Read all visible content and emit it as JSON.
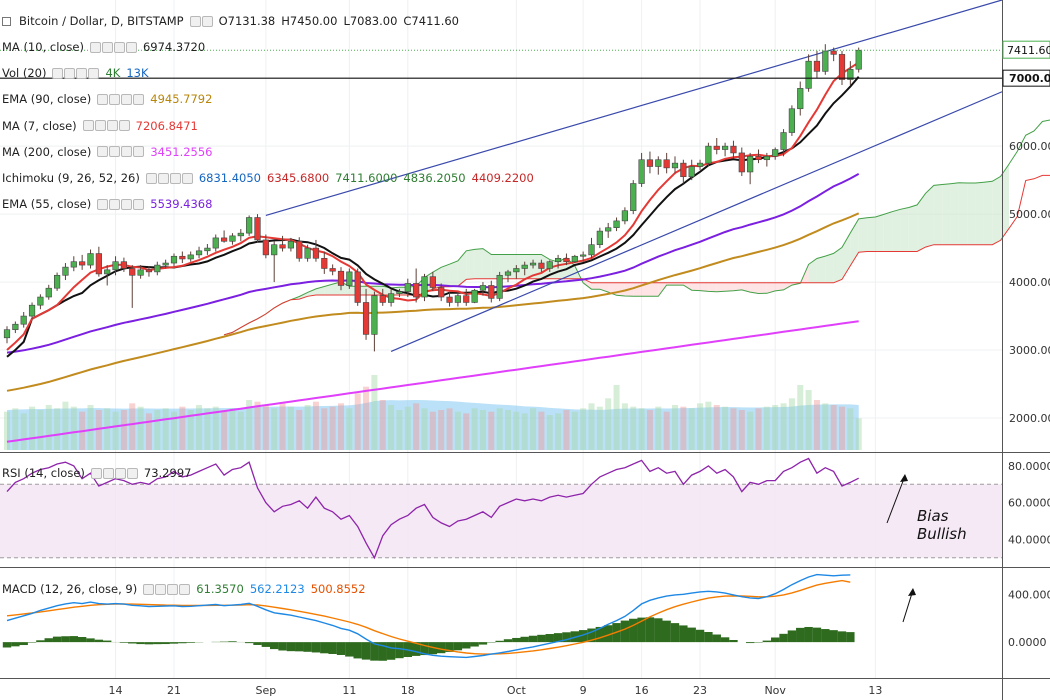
{
  "chart_data": {
    "type": "candlestick",
    "symbol": {
      "name": "Bitcoin / Dollar, D, BITSTAMP",
      "open": "O7131.38",
      "high": "H7450.00",
      "low": "L7083.00",
      "close": "C7411.60"
    },
    "x_tick_labels": [
      {
        "label": "14",
        "day": 13
      },
      {
        "label": "21",
        "day": 20
      },
      {
        "label": "Sep",
        "day": 31
      },
      {
        "label": "11",
        "day": 41
      },
      {
        "label": "18",
        "day": 48
      },
      {
        "label": "Oct",
        "day": 61
      },
      {
        "label": "9",
        "day": 69
      },
      {
        "label": "16",
        "day": 76
      },
      {
        "label": "23",
        "day": 83
      },
      {
        "label": "Nov",
        "day": 92
      },
      {
        "label": "13",
        "day": 104
      }
    ],
    "price_axis": {
      "ticks": [
        "7000.00",
        "6000.00",
        "5000.00",
        "4000.00",
        "3000.00",
        "2000.00"
      ],
      "tick_values": [
        7000,
        6000,
        5000,
        4000,
        3000,
        2000
      ],
      "last_price_label": "7411.60",
      "last_price": 7411.6,
      "ylim": [
        1500,
        8150
      ]
    },
    "rsi_axis": {
      "ticks": [
        "80.0000",
        "60.0000",
        "40.0000"
      ],
      "tick_values": [
        80,
        60,
        40
      ],
      "ylim": [
        25,
        87
      ],
      "bands": [
        70,
        30
      ]
    },
    "macd_axis": {
      "ticks": [
        "400.0000",
        "0.0000"
      ],
      "tick_values": [
        400,
        0
      ],
      "ylim": [
        -300,
        620
      ]
    },
    "indicators": [
      {
        "name": "MA (10, close)",
        "values": [
          {
            "text": "6974.3720",
            "color": "#222222"
          }
        ]
      },
      {
        "name": "Vol (20)",
        "values": [
          {
            "text": "4K",
            "color": "#2e7d32"
          },
          {
            "text": "13K",
            "color": "#1565c0"
          }
        ]
      },
      {
        "name": "EMA (90, close)",
        "values": [
          {
            "text": "4945.7792",
            "color": "#b8860b"
          }
        ]
      },
      {
        "name": "MA (7, close)",
        "values": [
          {
            "text": "7206.8471",
            "color": "#e53935"
          }
        ]
      },
      {
        "name": "MA (200, close)",
        "values": [
          {
            "text": "3451.2556",
            "color": "#e040fb"
          }
        ]
      },
      {
        "name": "Ichimoku (9, 26, 52, 26)",
        "values": [
          {
            "text": "6831.4050",
            "color": "#1565c0"
          },
          {
            "text": "6345.6800",
            "color": "#c62828"
          },
          {
            "text": "7411.6000",
            "color": "#2e7d32"
          },
          {
            "text": "4836.2050",
            "color": "#2e7d32"
          },
          {
            "text": "4409.2200",
            "color": "#c62828"
          }
        ]
      },
      {
        "name": "EMA (55, close)",
        "values": [
          {
            "text": "5539.4368",
            "color": "#7b1fe0"
          }
        ]
      }
    ],
    "rsi_label": {
      "name": "RSI (14, close)",
      "value": "73.2997",
      "color": "#222222"
    },
    "macd_label": {
      "name": "MACD (12, 26, close, 9)",
      "values": [
        {
          "text": "61.3570",
          "color": "#2e7d32"
        },
        {
          "text": "562.2123",
          "color": "#1e88e5"
        },
        {
          "text": "500.8552",
          "color": "#e65100"
        }
      ]
    },
    "annotation": {
      "line1": "Bias",
      "line2": "Bullish"
    },
    "candles_start_day": 0,
    "ohlc": [
      [
        3180,
        3350,
        3100,
        3300
      ],
      [
        3300,
        3420,
        3250,
        3380
      ],
      [
        3380,
        3560,
        3330,
        3500
      ],
      [
        3500,
        3700,
        3460,
        3660
      ],
      [
        3660,
        3820,
        3600,
        3780
      ],
      [
        3780,
        3960,
        3740,
        3910
      ],
      [
        3910,
        4140,
        3870,
        4100
      ],
      [
        4100,
        4280,
        4030,
        4220
      ],
      [
        4220,
        4380,
        4160,
        4300
      ],
      [
        4300,
        4400,
        4180,
        4250
      ],
      [
        4250,
        4480,
        4200,
        4420
      ],
      [
        4420,
        4520,
        4080,
        4120
      ],
      [
        4120,
        4250,
        3950,
        4180
      ],
      [
        4180,
        4380,
        4100,
        4300
      ],
      [
        4300,
        4360,
        4150,
        4200
      ],
      [
        4200,
        4250,
        3620,
        4100
      ],
      [
        4100,
        4250,
        4050,
        4180
      ],
      [
        4180,
        4230,
        4080,
        4150
      ],
      [
        4150,
        4300,
        4100,
        4250
      ],
      [
        4250,
        4330,
        4200,
        4280
      ],
      [
        4280,
        4420,
        4230,
        4380
      ],
      [
        4380,
        4450,
        4280,
        4340
      ],
      [
        4340,
        4450,
        4300,
        4400
      ],
      [
        4400,
        4520,
        4350,
        4460
      ],
      [
        4460,
        4560,
        4400,
        4500
      ],
      [
        4500,
        4700,
        4450,
        4650
      ],
      [
        4650,
        4760,
        4580,
        4600
      ],
      [
        4600,
        4720,
        4550,
        4680
      ],
      [
        4680,
        4780,
        4600,
        4720
      ],
      [
        4720,
        4980,
        4680,
        4950
      ],
      [
        4950,
        5000,
        4580,
        4620
      ],
      [
        4620,
        4700,
        4350,
        4400
      ],
      [
        4400,
        4600,
        4000,
        4550
      ],
      [
        4550,
        4680,
        4450,
        4500
      ],
      [
        4500,
        4650,
        4450,
        4600
      ],
      [
        4600,
        4660,
        4300,
        4350
      ],
      [
        4350,
        4550,
        4300,
        4500
      ],
      [
        4500,
        4620,
        4300,
        4350
      ],
      [
        4350,
        4450,
        4120,
        4200
      ],
      [
        4200,
        4260,
        4100,
        4160
      ],
      [
        4160,
        4220,
        3880,
        3950
      ],
      [
        3950,
        4200,
        3900,
        4150
      ],
      [
        4150,
        4200,
        3650,
        3700
      ],
      [
        3700,
        3900,
        3150,
        3230
      ],
      [
        3230,
        3860,
        2980,
        3800
      ],
      [
        3800,
        3900,
        3650,
        3700
      ],
      [
        3700,
        3890,
        3640,
        3830
      ],
      [
        3830,
        3900,
        3780,
        3860
      ],
      [
        3860,
        4050,
        3780,
        3980
      ],
      [
        3980,
        4200,
        3700,
        3780
      ],
      [
        3780,
        4120,
        3720,
        4080
      ],
      [
        4080,
        4150,
        3870,
        3920
      ],
      [
        3920,
        3980,
        3720,
        3780
      ],
      [
        3780,
        3850,
        3640,
        3700
      ],
      [
        3700,
        3850,
        3640,
        3800
      ],
      [
        3800,
        3900,
        3650,
        3700
      ],
      [
        3700,
        3900,
        3690,
        3880
      ],
      [
        3880,
        4000,
        3800,
        3950
      ],
      [
        3950,
        4020,
        3700,
        3760
      ],
      [
        3760,
        4150,
        3720,
        4100
      ],
      [
        4100,
        4180,
        4000,
        4150
      ],
      [
        4150,
        4250,
        4050,
        4200
      ],
      [
        4200,
        4300,
        4100,
        4250
      ],
      [
        4250,
        4330,
        4200,
        4280
      ],
      [
        4280,
        4330,
        4150,
        4200
      ],
      [
        4200,
        4320,
        4150,
        4300
      ],
      [
        4300,
        4400,
        4200,
        4350
      ],
      [
        4350,
        4420,
        4250,
        4300
      ],
      [
        4300,
        4400,
        4280,
        4380
      ],
      [
        4380,
        4450,
        4300,
        4400
      ],
      [
        4400,
        4650,
        4350,
        4550
      ],
      [
        4550,
        4800,
        4500,
        4750
      ],
      [
        4750,
        4870,
        4650,
        4800
      ],
      [
        4800,
        4950,
        4750,
        4900
      ],
      [
        4900,
        5100,
        4850,
        5050
      ],
      [
        5050,
        5500,
        5000,
        5450
      ],
      [
        5450,
        5900,
        5400,
        5800
      ],
      [
        5800,
        5920,
        5600,
        5700
      ],
      [
        5700,
        5850,
        5580,
        5800
      ],
      [
        5800,
        5900,
        5600,
        5680
      ],
      [
        5680,
        5850,
        5600,
        5750
      ],
      [
        5750,
        5800,
        5450,
        5550
      ],
      [
        5550,
        5800,
        5500,
        5700
      ],
      [
        5700,
        5800,
        5650,
        5750
      ],
      [
        5750,
        6050,
        5700,
        6000
      ],
      [
        6000,
        6120,
        5880,
        5950
      ],
      [
        5950,
        6050,
        5850,
        6000
      ],
      [
        6000,
        6080,
        5820,
        5900
      ],
      [
        5900,
        5980,
        5560,
        5620
      ],
      [
        5620,
        5900,
        5440,
        5850
      ],
      [
        5850,
        5950,
        5750,
        5800
      ],
      [
        5800,
        5900,
        5700,
        5850
      ],
      [
        5850,
        5980,
        5800,
        5950
      ],
      [
        5950,
        6250,
        5850,
        6200
      ],
      [
        6200,
        6600,
        6150,
        6550
      ],
      [
        6550,
        6950,
        6450,
        6850
      ],
      [
        6850,
        7350,
        6800,
        7250
      ],
      [
        7250,
        7400,
        7000,
        7100
      ],
      [
        7100,
        7500,
        7050,
        7400
      ],
      [
        7400,
        7450,
        7250,
        7350
      ],
      [
        7350,
        7400,
        6900,
        6980
      ],
      [
        6980,
        7250,
        6900,
        7130
      ],
      [
        7131.38,
        7450,
        7083,
        7411.6
      ]
    ],
    "rsi": [
      66,
      71,
      73,
      76,
      78,
      79,
      81,
      82,
      80,
      73,
      76,
      69,
      71,
      73,
      72,
      70,
      71,
      70,
      73,
      74,
      77,
      74,
      75,
      77,
      79,
      81,
      75,
      78,
      79,
      82,
      68,
      60,
      55,
      58,
      59,
      61,
      57,
      63,
      57,
      55,
      51,
      53,
      47,
      38,
      30,
      42,
      48,
      51,
      53,
      57,
      59,
      52,
      49,
      47,
      50,
      51,
      53,
      55,
      52,
      58,
      60,
      62,
      61,
      62,
      61,
      63,
      64,
      63,
      64,
      65,
      70,
      74,
      76,
      78,
      79,
      81,
      83,
      77,
      79,
      76,
      77,
      70,
      75,
      77,
      80,
      76,
      78,
      74,
      66,
      71,
      70,
      72,
      72,
      77,
      79,
      82,
      84,
      76,
      79,
      77,
      69,
      71,
      73.3
    ],
    "macd_line": [
      180,
      200,
      220,
      240,
      265,
      285,
      305,
      320,
      330,
      322,
      335,
      322,
      318,
      322,
      318,
      308,
      304,
      298,
      300,
      302,
      304,
      298,
      300,
      305,
      310,
      315,
      305,
      310,
      315,
      325,
      300,
      270,
      245,
      235,
      225,
      210,
      195,
      180,
      160,
      140,
      115,
      100,
      70,
      25,
      -15,
      -30,
      -48,
      -55,
      -65,
      -80,
      -98,
      -110,
      -118,
      -122,
      -125,
      -128,
      -120,
      -112,
      -100,
      -90,
      -78,
      -65,
      -52,
      -40,
      -25,
      -10,
      5,
      20,
      40,
      60,
      85,
      115,
      150,
      180,
      215,
      265,
      320,
      350,
      370,
      385,
      395,
      400,
      410,
      420,
      425,
      420,
      410,
      395,
      380,
      370,
      365,
      380,
      405,
      440,
      480,
      515,
      545,
      565,
      560,
      555,
      560,
      562
    ],
    "macd_signal": [
      220,
      228,
      236,
      244,
      253,
      262,
      272,
      282,
      292,
      300,
      308,
      313,
      316,
      318,
      319,
      318,
      316,
      314,
      312,
      310,
      309,
      307,
      306,
      306,
      307,
      308,
      308,
      309,
      310,
      313,
      311,
      303,
      292,
      281,
      270,
      258,
      245,
      232,
      218,
      202,
      185,
      168,
      148,
      124,
      96,
      71,
      47,
      26,
      8,
      -10,
      -28,
      -44,
      -59,
      -71,
      -82,
      -91,
      -97,
      -100,
      -100,
      -98,
      -94,
      -88,
      -81,
      -73,
      -64,
      -53,
      -42,
      -30,
      -16,
      -1,
      16,
      36,
      59,
      83,
      109,
      140,
      176,
      211,
      243,
      271,
      296,
      317,
      336,
      353,
      368,
      378,
      385,
      387,
      386,
      383,
      379,
      379,
      384,
      395,
      412,
      433,
      455,
      477,
      492,
      504,
      515,
      500.86
    ],
    "volume": [
      2300,
      2500,
      2200,
      2600,
      2400,
      2700,
      2500,
      2900,
      2600,
      2300,
      2700,
      2400,
      2500,
      2300,
      2400,
      2800,
      2600,
      2200,
      2400,
      2500,
      2300,
      2600,
      2400,
      2700,
      2500,
      2600,
      2400,
      2500,
      2300,
      3000,
      2900,
      2700,
      2500,
      2800,
      2600,
      2400,
      2700,
      2900,
      2500,
      2600,
      2800,
      2500,
      3400,
      3800,
      4500,
      3000,
      2700,
      2400,
      2600,
      2800,
      2500,
      2300,
      2400,
      2500,
      2300,
      2200,
      2500,
      2400,
      2300,
      2500,
      2400,
      2300,
      2200,
      2500,
      2300,
      2100,
      2200,
      2400,
      2300,
      2500,
      2800,
      2600,
      3100,
      3900,
      2800,
      2600,
      2500,
      2400,
      2600,
      2300,
      2700,
      2600,
      2500,
      2800,
      2900,
      2700,
      2600,
      2500,
      2400,
      2300,
      2500,
      2600,
      2700,
      2800,
      3100,
      3900,
      3600,
      3000,
      2800,
      2700,
      2600,
      2500,
      1900
    ],
    "vol_ma": [
      2400,
      2420,
      2440,
      2450,
      2460,
      2470,
      2480,
      2490,
      2500,
      2500,
      2510,
      2510,
      2500,
      2490,
      2480,
      2490,
      2500,
      2490,
      2480,
      2480,
      2480,
      2490,
      2490,
      2500,
      2500,
      2510,
      2510,
      2520,
      2520,
      2550,
      2580,
      2590,
      2600,
      2610,
      2610,
      2600,
      2610,
      2630,
      2640,
      2650,
      2670,
      2680,
      2740,
      2820,
      2930,
      2970,
      2990,
      2980,
      2990,
      3000,
      2990,
      2970,
      2950,
      2930,
      2900,
      2860,
      2830,
      2790,
      2750,
      2720,
      2700,
      2660,
      2620,
      2600,
      2570,
      2530,
      2500,
      2470,
      2440,
      2420,
      2420,
      2410,
      2420,
      2470,
      2480,
      2490,
      2490,
      2490,
      2500,
      2490,
      2500,
      2510,
      2520,
      2540,
      2560,
      2570,
      2570,
      2570,
      2560,
      2550,
      2550,
      2560,
      2570,
      2580,
      2600,
      2660,
      2700,
      2720,
      2730,
      2740,
      2740,
      2740,
      2700
    ]
  }
}
